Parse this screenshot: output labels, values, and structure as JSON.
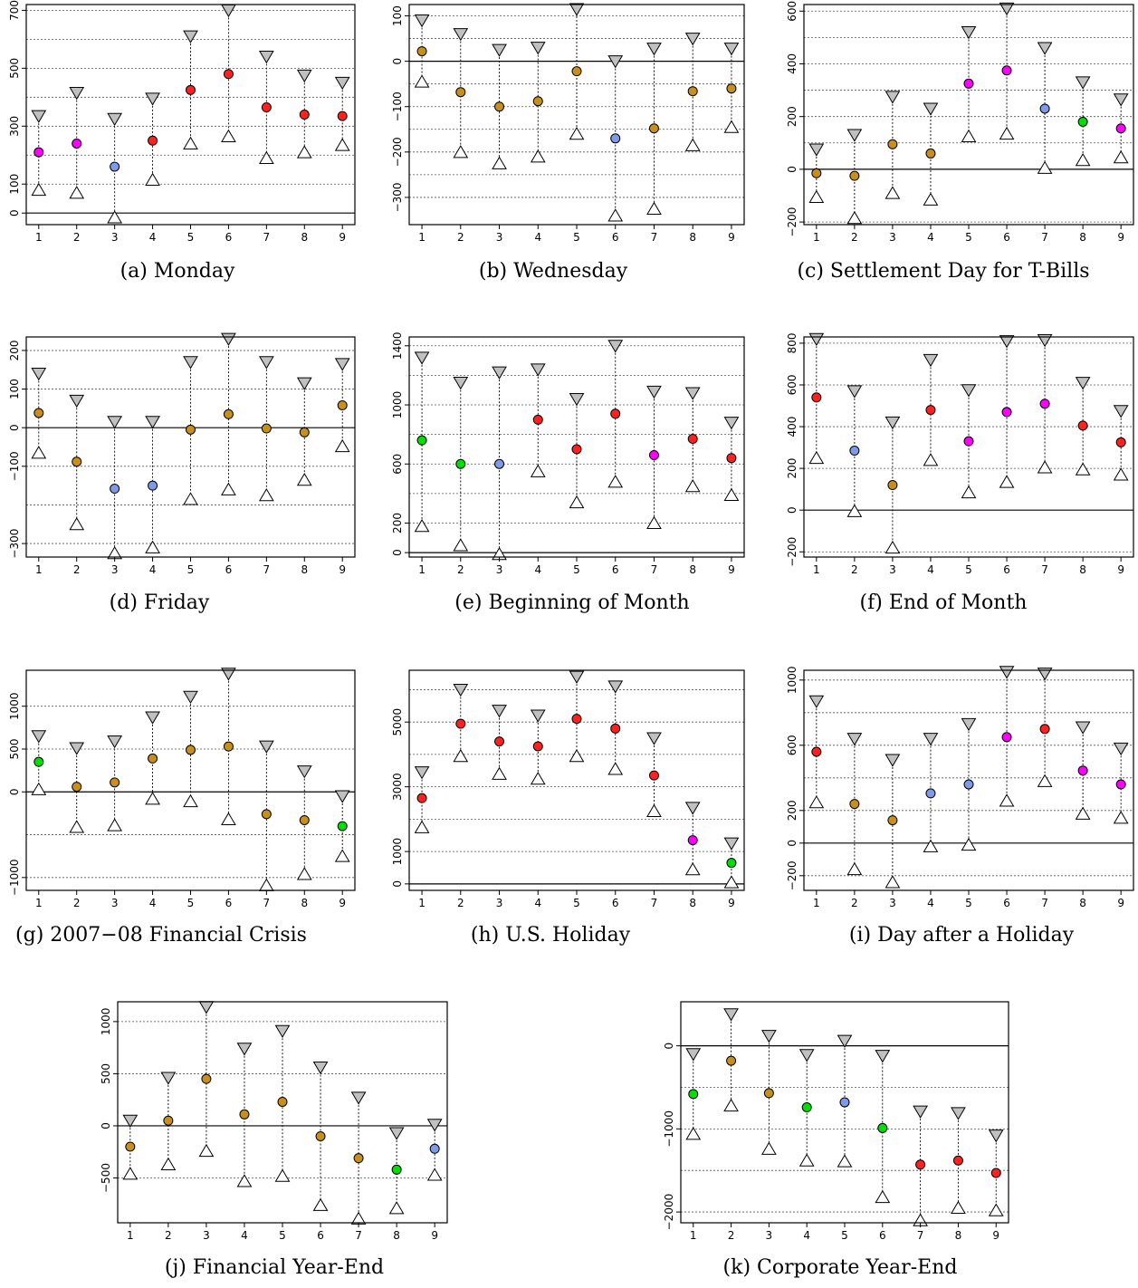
{
  "point_colors": {
    "magenta": "#ff00ff",
    "blue": "#7f9ae8",
    "red": "#ff2020",
    "gold": "#c8901b",
    "green": "#00e000",
    "gray": "#c0c0c0"
  },
  "chart_data": [
    {
      "type": "scatter",
      "id": "a",
      "caption": "(a) Monday",
      "ylim": [
        -40,
        720
      ],
      "yticks": [
        0,
        100,
        300,
        500,
        700
      ],
      "grid": [
        100,
        200,
        300,
        400,
        500,
        600,
        700
      ],
      "x": [
        1,
        2,
        3,
        4,
        5,
        6,
        7,
        8,
        9
      ],
      "upper": [
        335,
        415,
        325,
        395,
        610,
        700,
        540,
        475,
        450
      ],
      "point": [
        210,
        240,
        160,
        250,
        425,
        480,
        365,
        340,
        335
      ],
      "lower": [
        80,
        70,
        -15,
        115,
        240,
        265,
        190,
        210,
        235
      ],
      "colors": [
        "magenta",
        "magenta",
        "blue",
        "red",
        "red",
        "red",
        "red",
        "red",
        "red"
      ]
    },
    {
      "type": "scatter",
      "id": "b",
      "caption": "(b) Wednesday",
      "ylim": [
        -360,
        125
      ],
      "yticks": [
        -300,
        -200,
        -100,
        0,
        100
      ],
      "grid": [
        -300,
        -250,
        -200,
        -150,
        -100,
        -50,
        50,
        100
      ],
      "x": [
        1,
        2,
        3,
        4,
        5,
        6,
        7,
        8,
        9
      ],
      "upper": [
        90,
        60,
        25,
        30,
        115,
        0,
        28,
        50,
        28
      ],
      "point": [
        22,
        -68,
        -100,
        -88,
        -22,
        -170,
        -148,
        -66,
        -60
      ],
      "lower": [
        -45,
        -200,
        -225,
        -210,
        -160,
        -340,
        -325,
        -185,
        -145
      ],
      "colors": [
        "gold",
        "gold",
        "gold",
        "gold",
        "gold",
        "blue",
        "gold",
        "gold",
        "gold"
      ]
    },
    {
      "type": "scatter",
      "id": "c",
      "caption": "(c) Settlement Day for T-Bills",
      "ylim": [
        -210,
        625
      ],
      "yticks": [
        -200,
        0,
        200,
        400,
        600
      ],
      "grid": [
        -200,
        100,
        200,
        300,
        400,
        500,
        600
      ],
      "x": [
        1,
        2,
        3,
        4,
        5,
        6,
        7,
        8,
        9
      ],
      "upper": [
        75,
        130,
        275,
        230,
        520,
        610,
        460,
        330,
        265
      ],
      "point": [
        -15,
        -25,
        95,
        60,
        325,
        375,
        230,
        180,
        155
      ],
      "lower": [
        -105,
        -185,
        -90,
        -115,
        125,
        135,
        5,
        35,
        45
      ],
      "colors": [
        "gold",
        "gold",
        "gold",
        "gold",
        "magenta",
        "magenta",
        "blue",
        "green",
        "magenta"
      ]
    },
    {
      "type": "scatter",
      "id": "d",
      "caption": "(d) Friday",
      "ylim": [
        -335,
        235
      ],
      "yticks": [
        -300,
        -100,
        0,
        100,
        200
      ],
      "grid": [
        -300,
        -200,
        -100,
        100,
        200
      ],
      "x": [
        1,
        2,
        3,
        4,
        5,
        6,
        7,
        8,
        9
      ],
      "upper": [
        140,
        70,
        15,
        15,
        170,
        230,
        170,
        115,
        165
      ],
      "point": [
        38,
        -88,
        -158,
        -150,
        -5,
        35,
        -2,
        -12,
        58
      ],
      "lower": [
        -65,
        -250,
        -325,
        -310,
        -185,
        -160,
        -175,
        -135,
        -48
      ],
      "colors": [
        "gold",
        "gold",
        "blue",
        "blue",
        "gold",
        "gold",
        "gold",
        "gold",
        "gold"
      ]
    },
    {
      "type": "scatter",
      "id": "e",
      "caption": "(e) Beginning of Month",
      "ylim": [
        -30,
        1460
      ],
      "yticks": [
        0,
        200,
        600,
        1000,
        1400
      ],
      "grid": [
        200,
        400,
        600,
        800,
        1000,
        1200,
        1400
      ],
      "x": [
        1,
        2,
        3,
        4,
        5,
        6,
        7,
        8,
        9
      ],
      "upper": [
        1320,
        1150,
        1220,
        1240,
        1040,
        1400,
        1090,
        1080,
        880
      ],
      "point": [
        760,
        600,
        600,
        900,
        700,
        940,
        660,
        770,
        640
      ],
      "lower": [
        180,
        50,
        -10,
        550,
        340,
        480,
        200,
        450,
        390
      ],
      "colors": [
        "green",
        "green",
        "blue",
        "red",
        "red",
        "red",
        "magenta",
        "red",
        "red"
      ]
    },
    {
      "type": "scatter",
      "id": "f",
      "caption": "(f) End of Month",
      "ylim": [
        -225,
        830
      ],
      "yticks": [
        -200,
        0,
        200,
        400,
        600,
        800
      ],
      "grid": [
        -200,
        200,
        400,
        600,
        800
      ],
      "x": [
        1,
        2,
        3,
        4,
        5,
        6,
        7,
        8,
        9
      ],
      "upper": [
        820,
        570,
        420,
        720,
        575,
        810,
        815,
        610,
        475
      ],
      "point": [
        540,
        285,
        120,
        480,
        330,
        470,
        510,
        405,
        325
      ],
      "lower": [
        250,
        -5,
        -180,
        240,
        85,
        135,
        205,
        195,
        170
      ],
      "colors": [
        "red",
        "blue",
        "gold",
        "red",
        "magenta",
        "magenta",
        "magenta",
        "red",
        "red"
      ]
    },
    {
      "type": "scatter",
      "id": "g",
      "caption": "(g) 2007−08 Financial Crisis",
      "ylim": [
        -1150,
        1420
      ],
      "yticks": [
        -1000,
        0,
        500,
        1000
      ],
      "grid": [
        -1000,
        -500,
        500,
        1000
      ],
      "x": [
        1,
        2,
        3,
        4,
        5,
        6,
        7,
        8,
        9
      ],
      "upper": [
        650,
        510,
        590,
        870,
        1110,
        1380,
        530,
        240,
        -50
      ],
      "point": [
        350,
        60,
        110,
        390,
        490,
        530,
        -260,
        -330,
        -400
      ],
      "lower": [
        30,
        -410,
        -390,
        -80,
        -110,
        -320,
        -1090,
        -960,
        -750
      ],
      "colors": [
        "green",
        "gold",
        "gold",
        "gold",
        "gold",
        "gold",
        "gold",
        "gold",
        "green"
      ]
    },
    {
      "type": "scatter",
      "id": "h",
      "caption": "(h) U.S. Holiday",
      "ylim": [
        -200,
        6600
      ],
      "yticks": [
        0,
        1000,
        3000,
        5000
      ],
      "grid": [
        1000,
        2000,
        3000,
        4000,
        5000,
        6000
      ],
      "x": [
        1,
        2,
        3,
        4,
        5,
        6,
        7,
        8,
        9
      ],
      "upper": [
        3450,
        6000,
        5350,
        5200,
        6400,
        6100,
        4500,
        2350,
        1250
      ],
      "point": [
        2650,
        4950,
        4400,
        4250,
        5100,
        4800,
        3350,
        1350,
        650
      ],
      "lower": [
        1750,
        3950,
        3400,
        3250,
        3950,
        3550,
        2250,
        450,
        50
      ],
      "colors": [
        "red",
        "red",
        "red",
        "red",
        "red",
        "red",
        "red",
        "magenta",
        "green"
      ]
    },
    {
      "type": "scatter",
      "id": "i",
      "caption": "(i) Day after a Holiday",
      "ylim": [
        -290,
        1060
      ],
      "yticks": [
        -200,
        0,
        200,
        600,
        1000
      ],
      "grid": [
        -200,
        200,
        400,
        600,
        800,
        1000
      ],
      "x": [
        1,
        2,
        3,
        4,
        5,
        6,
        7,
        8,
        9
      ],
      "upper": [
        870,
        640,
        510,
        640,
        730,
        1050,
        1040,
        710,
        580
      ],
      "point": [
        560,
        240,
        140,
        305,
        360,
        650,
        700,
        445,
        360
      ],
      "lower": [
        250,
        -160,
        -240,
        -20,
        -10,
        260,
        380,
        180,
        155
      ],
      "colors": [
        "red",
        "gold",
        "gold",
        "blue",
        "blue",
        "magenta",
        "red",
        "magenta",
        "magenta"
      ]
    },
    {
      "type": "scatter",
      "id": "j",
      "caption": "(j) Financial Year-End",
      "ylim": [
        -930,
        1190
      ],
      "yticks": [
        -500,
        0,
        500,
        1000
      ],
      "grid": [
        -500,
        500,
        1000
      ],
      "x": [
        1,
        2,
        3,
        4,
        5,
        6,
        7,
        8,
        9
      ],
      "upper": [
        50,
        460,
        1140,
        740,
        910,
        560,
        270,
        -70,
        10
      ],
      "point": [
        -200,
        50,
        450,
        110,
        230,
        -100,
        -310,
        -420,
        -220
      ],
      "lower": [
        -460,
        -370,
        -240,
        -530,
        -480,
        -760,
        -890,
        -790,
        -470
      ],
      "colors": [
        "gold",
        "gold",
        "gold",
        "gold",
        "gold",
        "gold",
        "gold",
        "green",
        "blue"
      ]
    },
    {
      "type": "scatter",
      "id": "k",
      "caption": "(k) Corporate Year-End",
      "ylim": [
        -2130,
        530
      ],
      "yticks": [
        -2000,
        -1000,
        0
      ],
      "grid": [
        -2000,
        -1500,
        -1000,
        -500
      ],
      "x": [
        1,
        2,
        3,
        4,
        5,
        6,
        7,
        8,
        9
      ],
      "upper": [
        -100,
        380,
        120,
        -110,
        60,
        -120,
        -790,
        -810,
        -1080
      ],
      "point": [
        -580,
        -180,
        -570,
        -740,
        -680,
        -990,
        -1430,
        -1380,
        -1530
      ],
      "lower": [
        -1060,
        -720,
        -1240,
        -1380,
        -1390,
        -1820,
        -2100,
        -1950,
        -1980
      ],
      "colors": [
        "green",
        "gold",
        "gold",
        "green",
        "blue",
        "green",
        "red",
        "red",
        "red"
      ]
    }
  ]
}
